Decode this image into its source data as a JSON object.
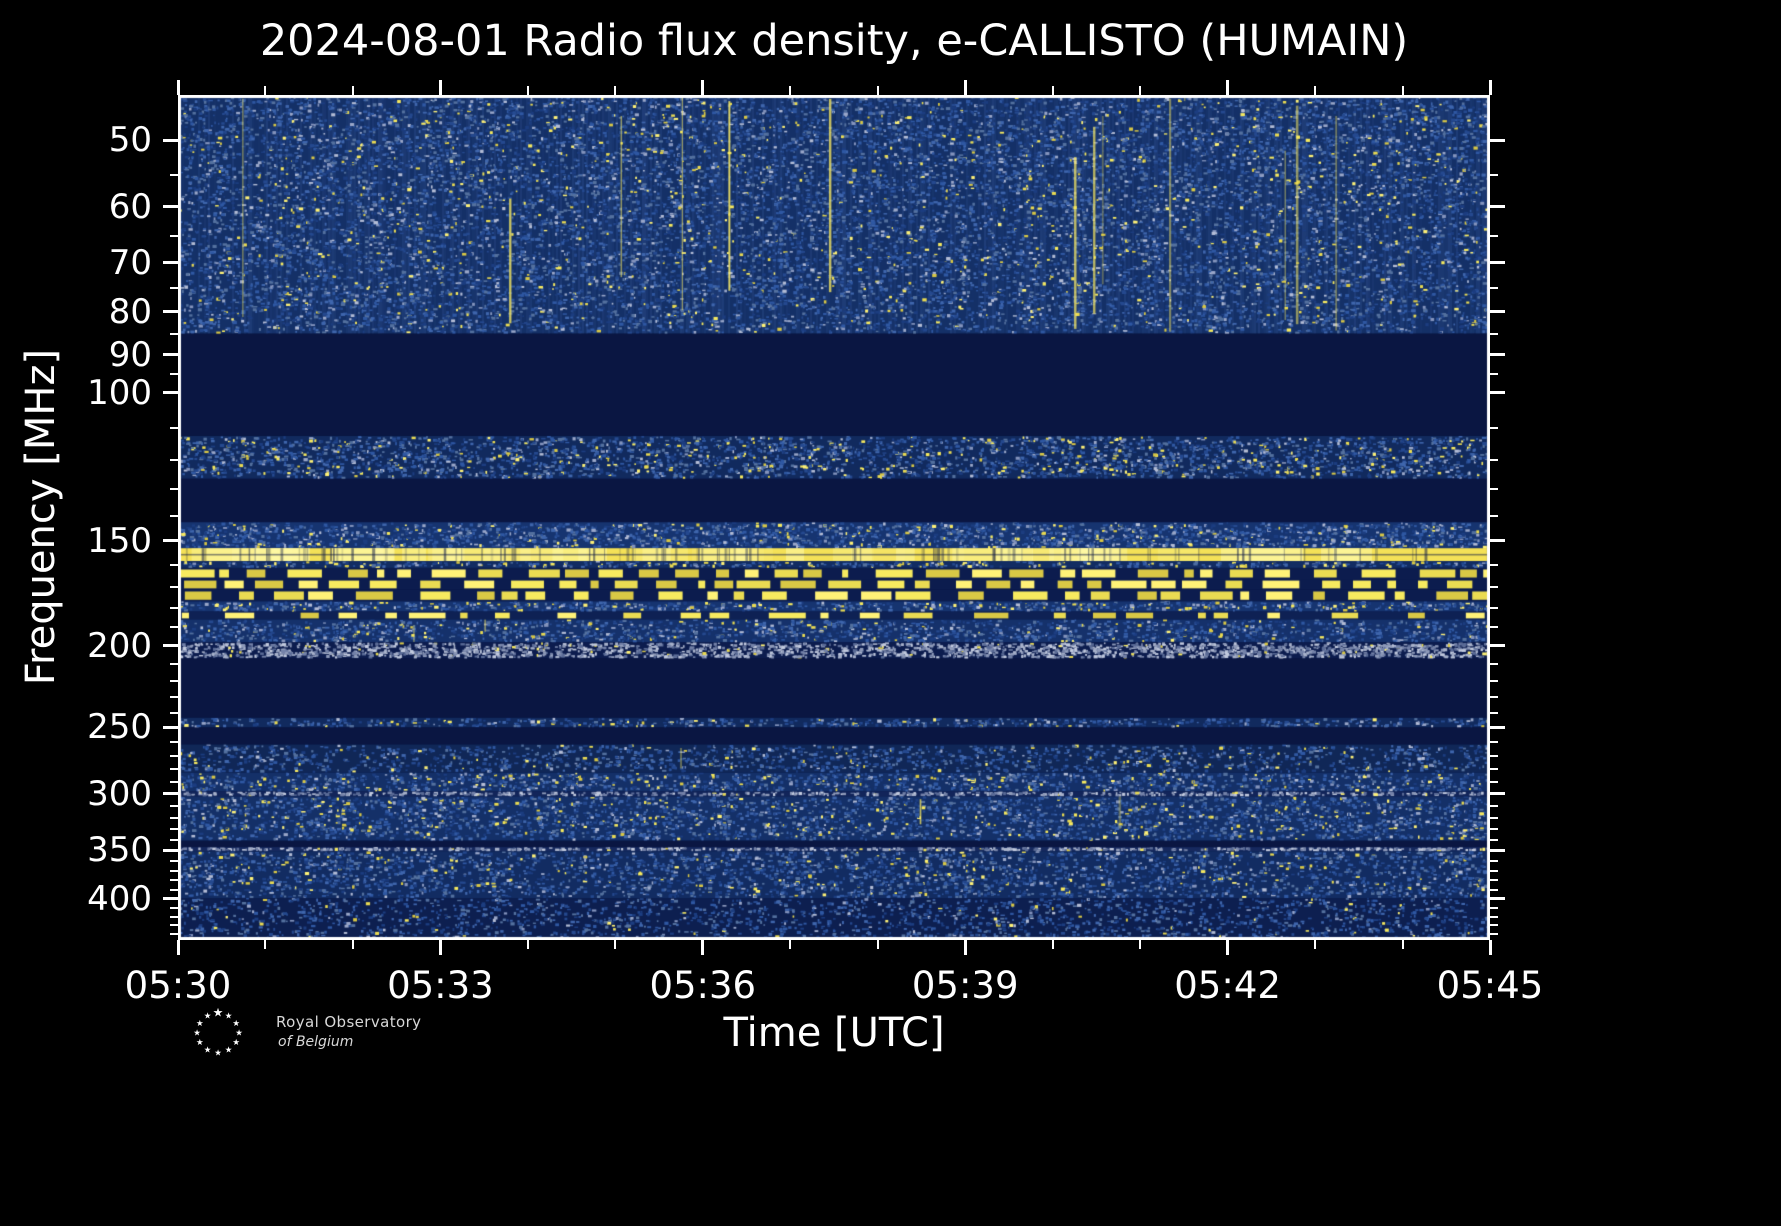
{
  "chart_data": {
    "type": "heatmap",
    "title": "2024-08-01 Radio flux density, e-CALLISTO (HUMAIN)",
    "xlabel": "Time [UTC]",
    "ylabel": "Frequency [MHz]",
    "grid": false,
    "legend": false,
    "y_scale": "log",
    "y_range": [
      44.2,
      447.6
    ],
    "x_range": [
      0,
      15
    ],
    "x_ticks": [
      {
        "pos": 0,
        "label": "05:30"
      },
      {
        "pos": 3,
        "label": "05:33"
      },
      {
        "pos": 6,
        "label": "05:36"
      },
      {
        "pos": 9,
        "label": "05:39"
      },
      {
        "pos": 12,
        "label": "05:42"
      },
      {
        "pos": 15,
        "label": "05:45"
      }
    ],
    "x_minor": [
      1,
      2,
      4,
      5,
      7,
      8,
      10,
      11,
      13,
      14
    ],
    "y_ticks": [
      50,
      60,
      70,
      80,
      90,
      100,
      150,
      200,
      250,
      300,
      350,
      400
    ],
    "y_minor": [
      55,
      65,
      75,
      85,
      95,
      110,
      120,
      130,
      140,
      160,
      170,
      180,
      190,
      210,
      220,
      230,
      240,
      260,
      270,
      280,
      290,
      310,
      320,
      330,
      340,
      360,
      370,
      380,
      390,
      410,
      420,
      430,
      440
    ],
    "colors": {
      "figure_bg": "#000000",
      "plot_bg": "#0a1642",
      "frame": "#ffffff",
      "text": "#ffffff",
      "speckle_blues": [
        "#1c3d80",
        "#25498f",
        "#2f58a3",
        "#3f66ad",
        "#54719f"
      ],
      "speckle_pales": [
        "#8494bd",
        "#9aa7c9",
        "#b4bdd6"
      ],
      "speckle_yellows": [
        "#d9c845",
        "#eadb52",
        "#f7ea5f",
        "#fff277"
      ],
      "speckle_grays": [
        "#5a6b96",
        "#7482a8",
        "#8e9ab9",
        "#a8b2cb",
        "#c2cade"
      ]
    },
    "bands": [
      {
        "f0": 44.2,
        "f1": 85,
        "pattern": "vspeckle",
        "base": "#143067",
        "density": 0.42,
        "yellow": 0.05,
        "pale": 0.1,
        "vstreaks": 13
      },
      {
        "f0": 85,
        "f1": 112.5,
        "pattern": "solid",
        "base": "#0a1642"
      },
      {
        "f0": 112.5,
        "f1": 126.5,
        "pattern": "speckle",
        "base": "#112a5e",
        "density": 0.5,
        "yellow": 0.1,
        "pale": 0.1
      },
      {
        "f0": 126.5,
        "f1": 142.5,
        "pattern": "solid",
        "base": "#0a1642"
      },
      {
        "f0": 142.5,
        "f1": 153,
        "pattern": "speckle",
        "base": "#163470",
        "density": 0.58,
        "yellow": 0.06,
        "pale": 0.16
      },
      {
        "f0": 153,
        "f1": 158.5,
        "pattern": "hline",
        "base": "#f4e157"
      },
      {
        "f0": 158.5,
        "f1": 161.5,
        "pattern": "speckle",
        "base": "#122c62",
        "density": 0.45,
        "yellow": 0.18,
        "pale": 0.08
      },
      {
        "f0": 161.5,
        "f1": 166.5,
        "pattern": "dashrow",
        "base": "#0c1c4e",
        "density": 0.62
      },
      {
        "f0": 166.5,
        "f1": 171.5,
        "pattern": "dashrow",
        "base": "#0c1c4e",
        "density": 0.68
      },
      {
        "f0": 171.5,
        "f1": 177,
        "pattern": "dashrow",
        "base": "#0c1c4e",
        "density": 0.56
      },
      {
        "f0": 177,
        "f1": 182,
        "pattern": "speckle",
        "base": "#163470",
        "density": 0.52,
        "yellow": 0.12,
        "pale": 0.12
      },
      {
        "f0": 182,
        "f1": 186,
        "pattern": "dashrow",
        "base": "#0e2154",
        "density": 0.34
      },
      {
        "f0": 186,
        "f1": 198,
        "pattern": "speckle",
        "base": "#15316b",
        "density": 0.46,
        "yellow": 0.06,
        "pale": 0.12,
        "vstreaks": 2
      },
      {
        "f0": 198,
        "f1": 207,
        "pattern": "gray",
        "base": "#0c1c4e",
        "density": 0.85
      },
      {
        "f0": 207,
        "f1": 243.5,
        "pattern": "solid",
        "base": "#0a1642"
      },
      {
        "f0": 243.5,
        "f1": 250,
        "pattern": "speckle",
        "base": "#112a5e",
        "density": 0.42,
        "yellow": 0.07,
        "pale": 0.1
      },
      {
        "f0": 250,
        "f1": 262,
        "pattern": "solid",
        "base": "#0a1642"
      },
      {
        "f0": 262,
        "f1": 283,
        "pattern": "speckle",
        "base": "#102757",
        "density": 0.36,
        "yellow": 0.05,
        "pale": 0.08,
        "vstreaks": 1
      },
      {
        "f0": 283,
        "f1": 298,
        "pattern": "speckle",
        "base": "#143068",
        "density": 0.48,
        "yellow": 0.08,
        "pale": 0.12
      },
      {
        "f0": 298,
        "f1": 302,
        "pattern": "gray",
        "base": "#12255a",
        "density": 0.7
      },
      {
        "f0": 302,
        "f1": 341,
        "pattern": "speckle",
        "base": "#143068",
        "density": 0.46,
        "yellow": 0.08,
        "pale": 0.1,
        "vstreaks": 2
      },
      {
        "f0": 341,
        "f1": 347,
        "pattern": "solid",
        "base": "#0a1642"
      },
      {
        "f0": 347,
        "f1": 351,
        "pattern": "gray",
        "base": "#16295e",
        "density": 0.75
      },
      {
        "f0": 351,
        "f1": 399,
        "pattern": "speckle",
        "base": "#122c62",
        "density": 0.42,
        "yellow": 0.05,
        "pale": 0.09
      },
      {
        "f0": 399,
        "f1": 447.6,
        "pattern": "speckle",
        "base": "#0d1f50",
        "density": 0.3,
        "yellow": 0.03,
        "pale": 0.06
      }
    ]
  },
  "logo": {
    "line1": "Royal Observatory",
    "line2": "of Belgium"
  }
}
